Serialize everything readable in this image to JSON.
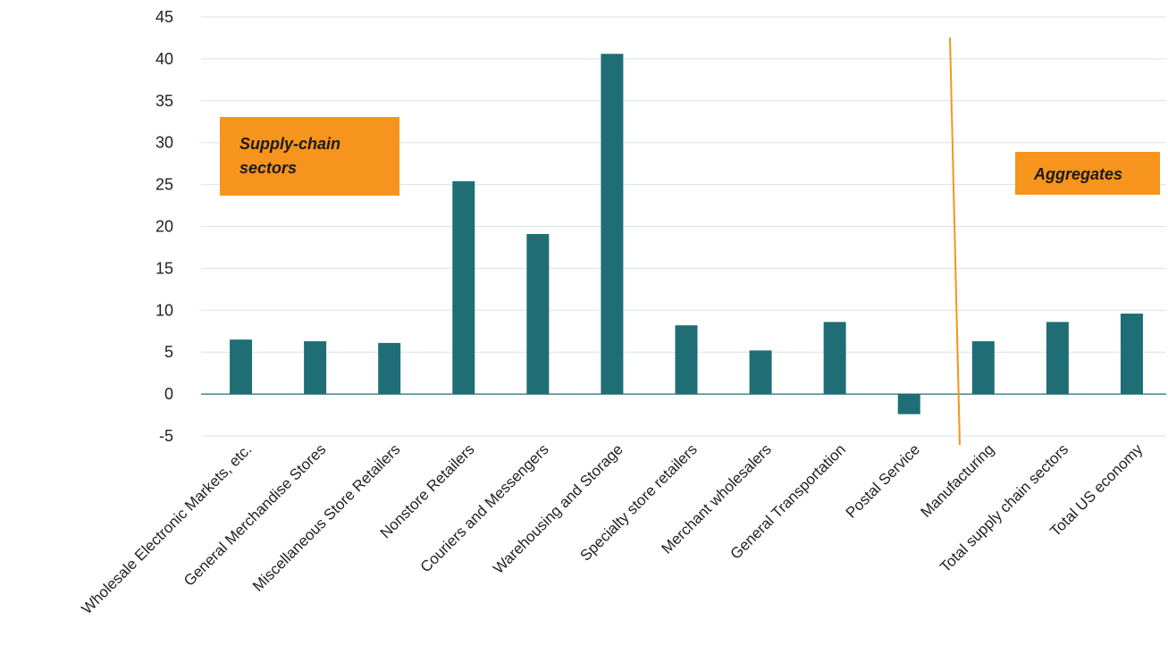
{
  "chart_data": {
    "type": "bar",
    "categories": [
      "Wholesale Electronic Markets, etc.",
      "General Merchandise Stores",
      "Miscellaneous Store Retailers",
      "Nonstore Retailers",
      "Couriers and Messengers",
      "Warehousing and Storage",
      "Specialty store retailers",
      "Merchant wholesalers",
      "General Transportation",
      "Postal Service",
      "Manufacturing",
      "Total supply chain sectors",
      "Total US economy"
    ],
    "values": [
      6.5,
      6.3,
      6.1,
      25.4,
      19.1,
      40.6,
      8.2,
      5.2,
      8.6,
      -2.4,
      6.3,
      8.6,
      9.6
    ],
    "ylim": [
      -5,
      45
    ],
    "yticks": [
      "45",
      "40",
      "35",
      "30",
      "25",
      "20",
      "15",
      "10",
      "5",
      "0",
      "-5"
    ],
    "grid": true,
    "bar_color": "#1f6e75",
    "grid_color": "#d3e6e7",
    "axis_color": "#1f6e75",
    "annotations": [
      {
        "text_lines": [
          "Supply-chain",
          "sectors"
        ],
        "fill": "#f7941d"
      },
      {
        "text_lines": [
          "Aggregates"
        ],
        "fill": "#f7941d"
      }
    ],
    "divider_color": "#f7941d"
  }
}
